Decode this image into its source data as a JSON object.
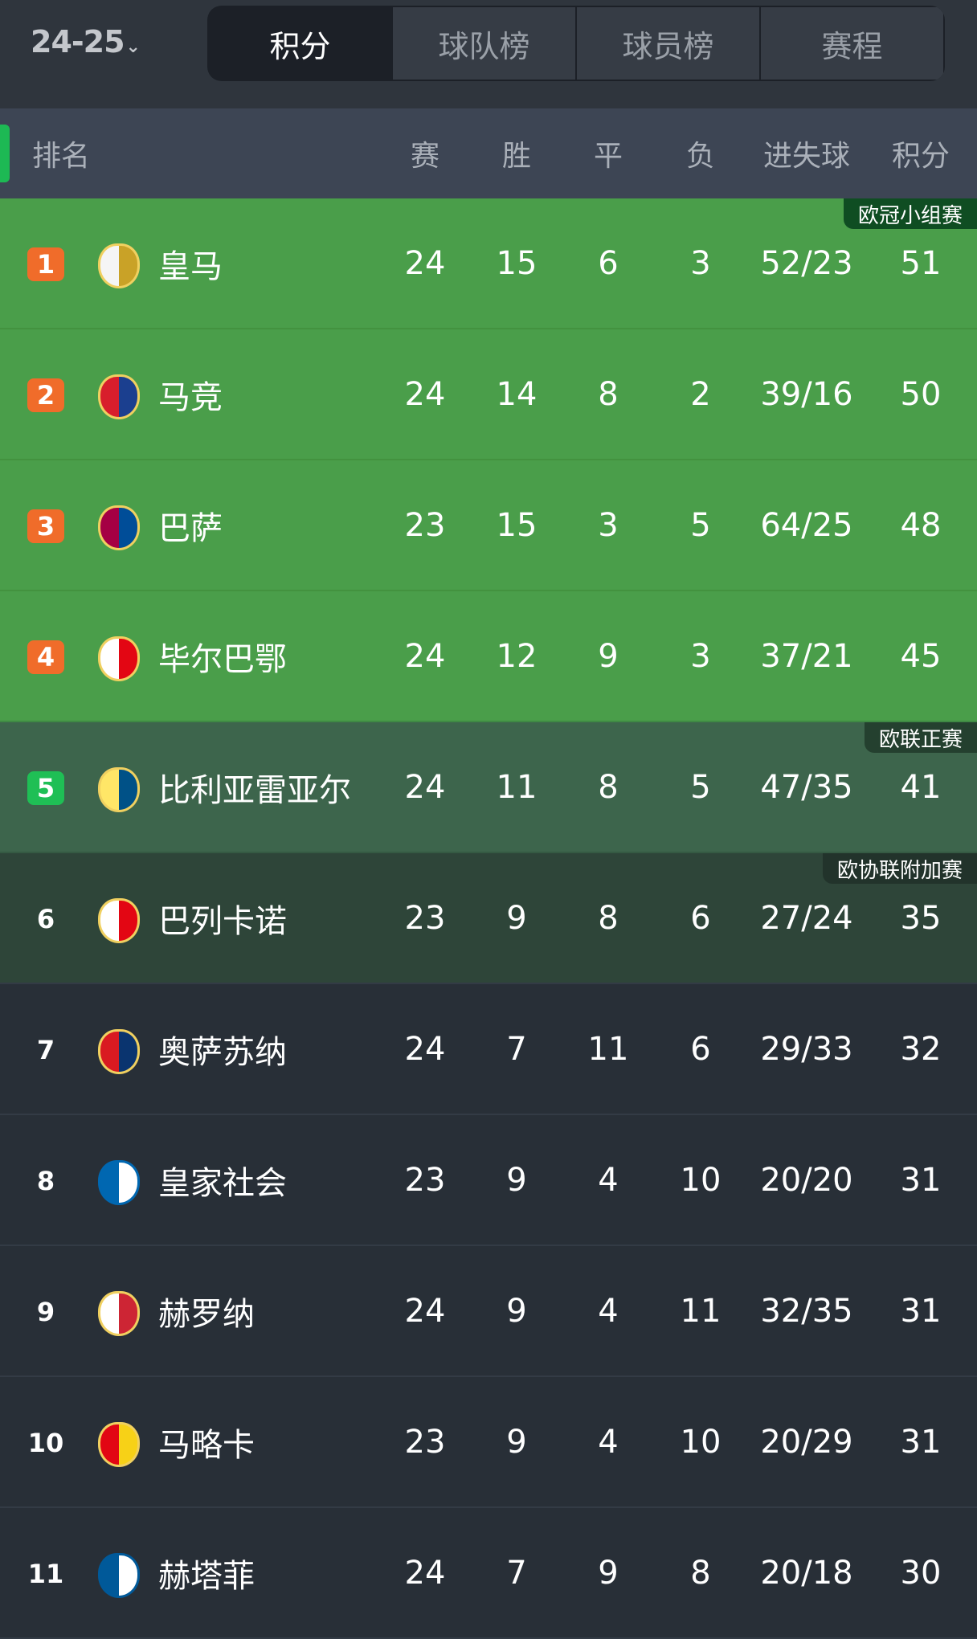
{
  "season": {
    "label": "24-25",
    "chevron": "⌄"
  },
  "tabs": [
    {
      "label": "积分"
    },
    {
      "label": "球队榜"
    },
    {
      "label": "球员榜"
    },
    {
      "label": "赛程"
    }
  ],
  "header": {
    "rank": "排名",
    "played": "赛",
    "won": "胜",
    "drawn": "平",
    "lost": "负",
    "goals": "进失球",
    "points": "积分"
  },
  "colors": {
    "cl": "#4a9e4a",
    "el": "#3d654c",
    "ecl": "#2e4539",
    "default": "#282f37",
    "rank_badge_orange": "#f06c2a",
    "rank_badge_green": "#1fbf55"
  },
  "rows": [
    {
      "rank": "1",
      "team": "皇马",
      "p": "24",
      "w": "15",
      "d": "6",
      "l": "3",
      "g": "52/23",
      "pts": "51",
      "tag": "欧冠小组赛"
    },
    {
      "rank": "2",
      "team": "马竞",
      "p": "24",
      "w": "14",
      "d": "8",
      "l": "2",
      "g": "39/16",
      "pts": "50"
    },
    {
      "rank": "3",
      "team": "巴萨",
      "p": "23",
      "w": "15",
      "d": "3",
      "l": "5",
      "g": "64/25",
      "pts": "48"
    },
    {
      "rank": "4",
      "team": "毕尔巴鄂",
      "p": "24",
      "w": "12",
      "d": "9",
      "l": "3",
      "g": "37/21",
      "pts": "45"
    },
    {
      "rank": "5",
      "team": "比利亚雷亚尔",
      "p": "24",
      "w": "11",
      "d": "8",
      "l": "5",
      "g": "47/35",
      "pts": "41",
      "tag": "欧联正赛"
    },
    {
      "rank": "6",
      "team": "巴列卡诺",
      "p": "23",
      "w": "9",
      "d": "8",
      "l": "6",
      "g": "27/24",
      "pts": "35",
      "tag": "欧协联附加赛"
    },
    {
      "rank": "7",
      "team": "奥萨苏纳",
      "p": "24",
      "w": "7",
      "d": "11",
      "l": "6",
      "g": "29/33",
      "pts": "32"
    },
    {
      "rank": "8",
      "team": "皇家社会",
      "p": "23",
      "w": "9",
      "d": "4",
      "l": "10",
      "g": "20/20",
      "pts": "31"
    },
    {
      "rank": "9",
      "team": "赫罗纳",
      "p": "24",
      "w": "9",
      "d": "4",
      "l": "11",
      "g": "32/35",
      "pts": "31"
    },
    {
      "rank": "10",
      "team": "马略卡",
      "p": "23",
      "w": "9",
      "d": "4",
      "l": "10",
      "g": "20/29",
      "pts": "31"
    },
    {
      "rank": "11",
      "team": "赫塔菲",
      "p": "24",
      "w": "7",
      "d": "9",
      "l": "8",
      "g": "20/18",
      "pts": "30"
    }
  ]
}
